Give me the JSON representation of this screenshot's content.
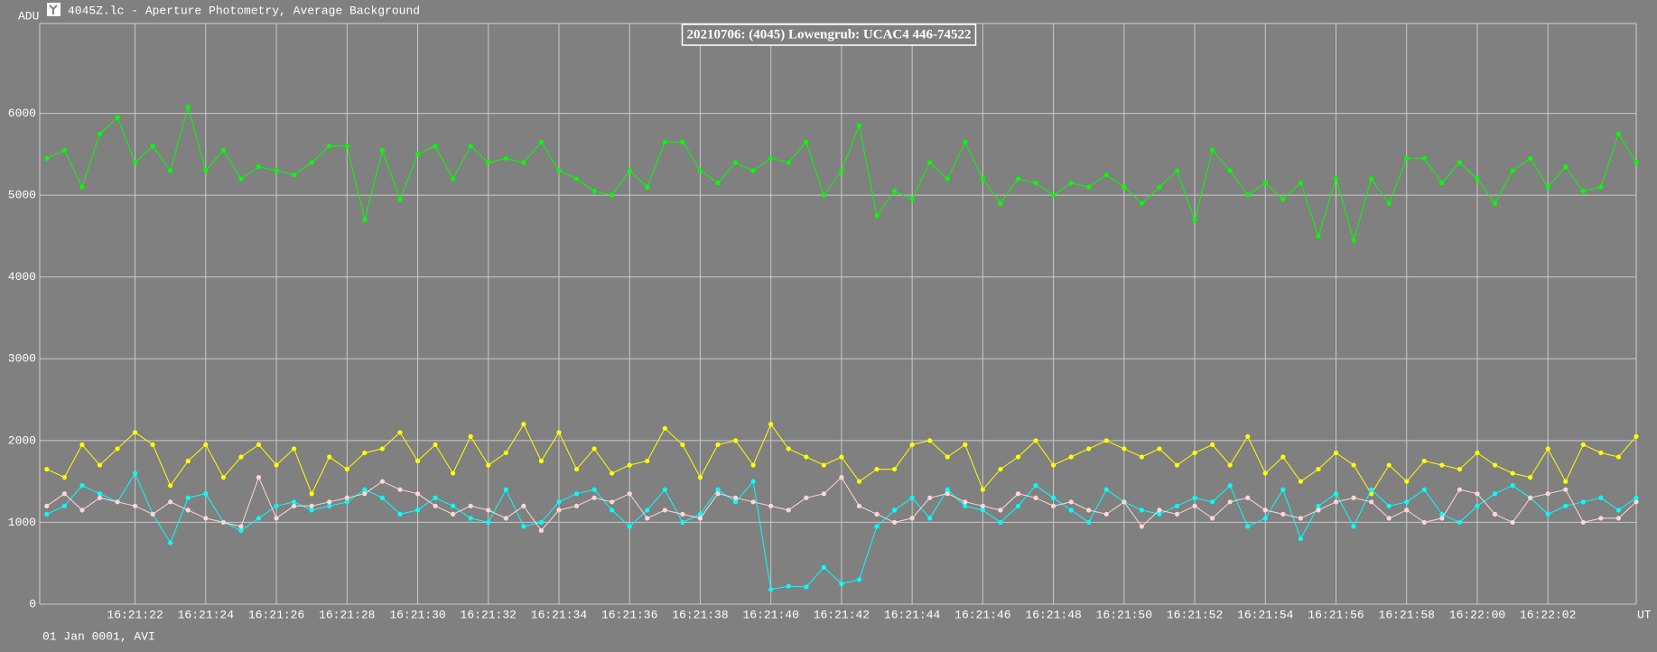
{
  "window_title": "4045Z.lc - Aperture Photometry, Average Background",
  "chart_data": {
    "type": "line",
    "title": "20210706: (4045) Lowengrub: UCAC4 446-74522",
    "y_label": "ADU",
    "x_label": "UT",
    "footer": "01 Jan 0001, AVI",
    "grid": true,
    "ylim": [
      0,
      7100
    ],
    "yticks": [
      0,
      1000,
      2000,
      3000,
      4000,
      5000,
      6000
    ],
    "xlim": [
      19.3,
      64.5
    ],
    "xticks": [
      {
        "value": 22,
        "label": "16:21:22"
      },
      {
        "value": 24,
        "label": "16:21:24"
      },
      {
        "value": 26,
        "label": "16:21:26"
      },
      {
        "value": 28,
        "label": "16:21:28"
      },
      {
        "value": 30,
        "label": "16:21:30"
      },
      {
        "value": 32,
        "label": "16:21:32"
      },
      {
        "value": 34,
        "label": "16:21:34"
      },
      {
        "value": 36,
        "label": "16:21:36"
      },
      {
        "value": 38,
        "label": "16:21:38"
      },
      {
        "value": 40,
        "label": "16:21:40"
      },
      {
        "value": 42,
        "label": "16:21:42"
      },
      {
        "value": 44,
        "label": "16:21:44"
      },
      {
        "value": 46,
        "label": "16:21:46"
      },
      {
        "value": 48,
        "label": "16:21:48"
      },
      {
        "value": 50,
        "label": "16:21:50"
      },
      {
        "value": 52,
        "label": "16:21:52"
      },
      {
        "value": 54,
        "label": "16:21:54"
      },
      {
        "value": 56,
        "label": "16:21:56"
      },
      {
        "value": 58,
        "label": "16:21:58"
      },
      {
        "value": 60,
        "label": "16:22:00"
      },
      {
        "value": 62,
        "label": "16:22:02"
      }
    ],
    "x": [
      19.5,
      20,
      20.5,
      21,
      21.5,
      22,
      22.5,
      23,
      23.5,
      24,
      24.5,
      25,
      25.5,
      26,
      26.5,
      27,
      27.5,
      28,
      28.5,
      29,
      29.5,
      30,
      30.5,
      31,
      31.5,
      32,
      32.5,
      33,
      33.5,
      34,
      34.5,
      35,
      35.5,
      36,
      36.5,
      37,
      37.5,
      38,
      38.5,
      39,
      39.5,
      40,
      40.5,
      41,
      41.5,
      42,
      42.5,
      43,
      43.5,
      44,
      44.5,
      45,
      45.5,
      46,
      46.5,
      47,
      47.5,
      48,
      48.5,
      49,
      49.5,
      50,
      50.5,
      51,
      51.5,
      52,
      52.5,
      53,
      53.5,
      54,
      54.5,
      55,
      55.5,
      56,
      56.5,
      57,
      57.5,
      58,
      58.5,
      59,
      59.5,
      60,
      60.5,
      61,
      61.5,
      62,
      62.5,
      63,
      63.5,
      64,
      64.5
    ],
    "series": [
      {
        "color": "#00ff00",
        "values": [
          5450,
          5550,
          5100,
          5750,
          5950,
          5400,
          5600,
          5300,
          6080,
          5300,
          5550,
          5200,
          5350,
          5300,
          5250,
          5400,
          5600,
          5600,
          4700,
          5550,
          4950,
          5500,
          5600,
          5200,
          5600,
          5400,
          5450,
          5400,
          5650,
          5300,
          5200,
          5050,
          5000,
          5300,
          5100,
          5650,
          5650,
          5300,
          5150,
          5400,
          5300,
          5450,
          5400,
          5650,
          5000,
          5300,
          5850,
          4750,
          5050,
          4950,
          5400,
          5200,
          5650,
          5200,
          4900,
          5200,
          5150,
          5000,
          5150,
          5100,
          5250,
          5100,
          4900,
          5100,
          5300,
          4700,
          5550,
          5300,
          5000,
          5150,
          4950,
          5150,
          4500,
          5200,
          4450,
          5200,
          4900,
          5450,
          5450,
          5150,
          5400,
          5200,
          4900,
          5300,
          5450,
          5100,
          5350,
          5050,
          5100,
          5750,
          5400
        ]
      },
      {
        "color": "#ffff00",
        "values": [
          1650,
          1550,
          1950,
          1700,
          1900,
          2100,
          1950,
          1450,
          1750,
          1950,
          1550,
          1800,
          1950,
          1700,
          1900,
          1350,
          1800,
          1650,
          1850,
          1900,
          2100,
          1750,
          1950,
          1600,
          2050,
          1700,
          1850,
          2200,
          1750,
          2100,
          1650,
          1900,
          1600,
          1700,
          1750,
          2150,
          1950,
          1550,
          1950,
          2000,
          1700,
          2200,
          1900,
          1800,
          1700,
          1800,
          1500,
          1650,
          1650,
          1950,
          2000,
          1800,
          1950,
          1400,
          1650,
          1800,
          2000,
          1700,
          1800,
          1900,
          2000,
          1900,
          1800,
          1900,
          1700,
          1850,
          1950,
          1700,
          2050,
          1600,
          1800,
          1500,
          1650,
          1850,
          1700,
          1350,
          1700,
          1500,
          1750,
          1700,
          1650,
          1850,
          1700,
          1600,
          1550,
          1900,
          1500,
          1950,
          1850,
          1800,
          2050
        ]
      },
      {
        "color": "#00ffff",
        "values": [
          1100,
          1200,
          1450,
          1350,
          1250,
          1600,
          1100,
          750,
          1300,
          1350,
          1000,
          900,
          1050,
          1200,
          1250,
          1150,
          1200,
          1250,
          1400,
          1300,
          1100,
          1150,
          1300,
          1200,
          1050,
          1000,
          1400,
          950,
          1000,
          1250,
          1350,
          1400,
          1150,
          950,
          1150,
          1400,
          1000,
          1100,
          1400,
          1250,
          1500,
          180,
          220,
          210,
          450,
          250,
          300,
          950,
          1150,
          1300,
          1050,
          1400,
          1200,
          1150,
          1000,
          1200,
          1450,
          1300,
          1150,
          1000,
          1400,
          1250,
          1150,
          1100,
          1200,
          1300,
          1250,
          1450,
          950,
          1050,
          1400,
          800,
          1200,
          1350,
          950,
          1400,
          1200,
          1250,
          1400,
          1100,
          1000,
          1200,
          1350,
          1450,
          1300,
          1100,
          1200,
          1250,
          1300,
          1150,
          1300
        ]
      },
      {
        "color": "#ffd6d6",
        "values": [
          1200,
          1350,
          1150,
          1300,
          1250,
          1200,
          1100,
          1250,
          1150,
          1050,
          1000,
          950,
          1550,
          1050,
          1200,
          1200,
          1250,
          1300,
          1350,
          1500,
          1400,
          1350,
          1200,
          1100,
          1200,
          1150,
          1050,
          1200,
          900,
          1150,
          1200,
          1300,
          1250,
          1350,
          1050,
          1150,
          1100,
          1050,
          1350,
          1300,
          1250,
          1200,
          1150,
          1300,
          1350,
          1550,
          1200,
          1100,
          1000,
          1050,
          1300,
          1350,
          1250,
          1200,
          1150,
          1350,
          1300,
          1200,
          1250,
          1150,
          1100,
          1250,
          950,
          1150,
          1100,
          1200,
          1050,
          1250,
          1300,
          1150,
          1100,
          1050,
          1150,
          1250,
          1300,
          1250,
          1050,
          1150,
          1000,
          1050,
          1400,
          1350,
          1100,
          1000,
          1300,
          1350,
          1400,
          1000,
          1050,
          1050,
          1250
        ]
      }
    ]
  }
}
